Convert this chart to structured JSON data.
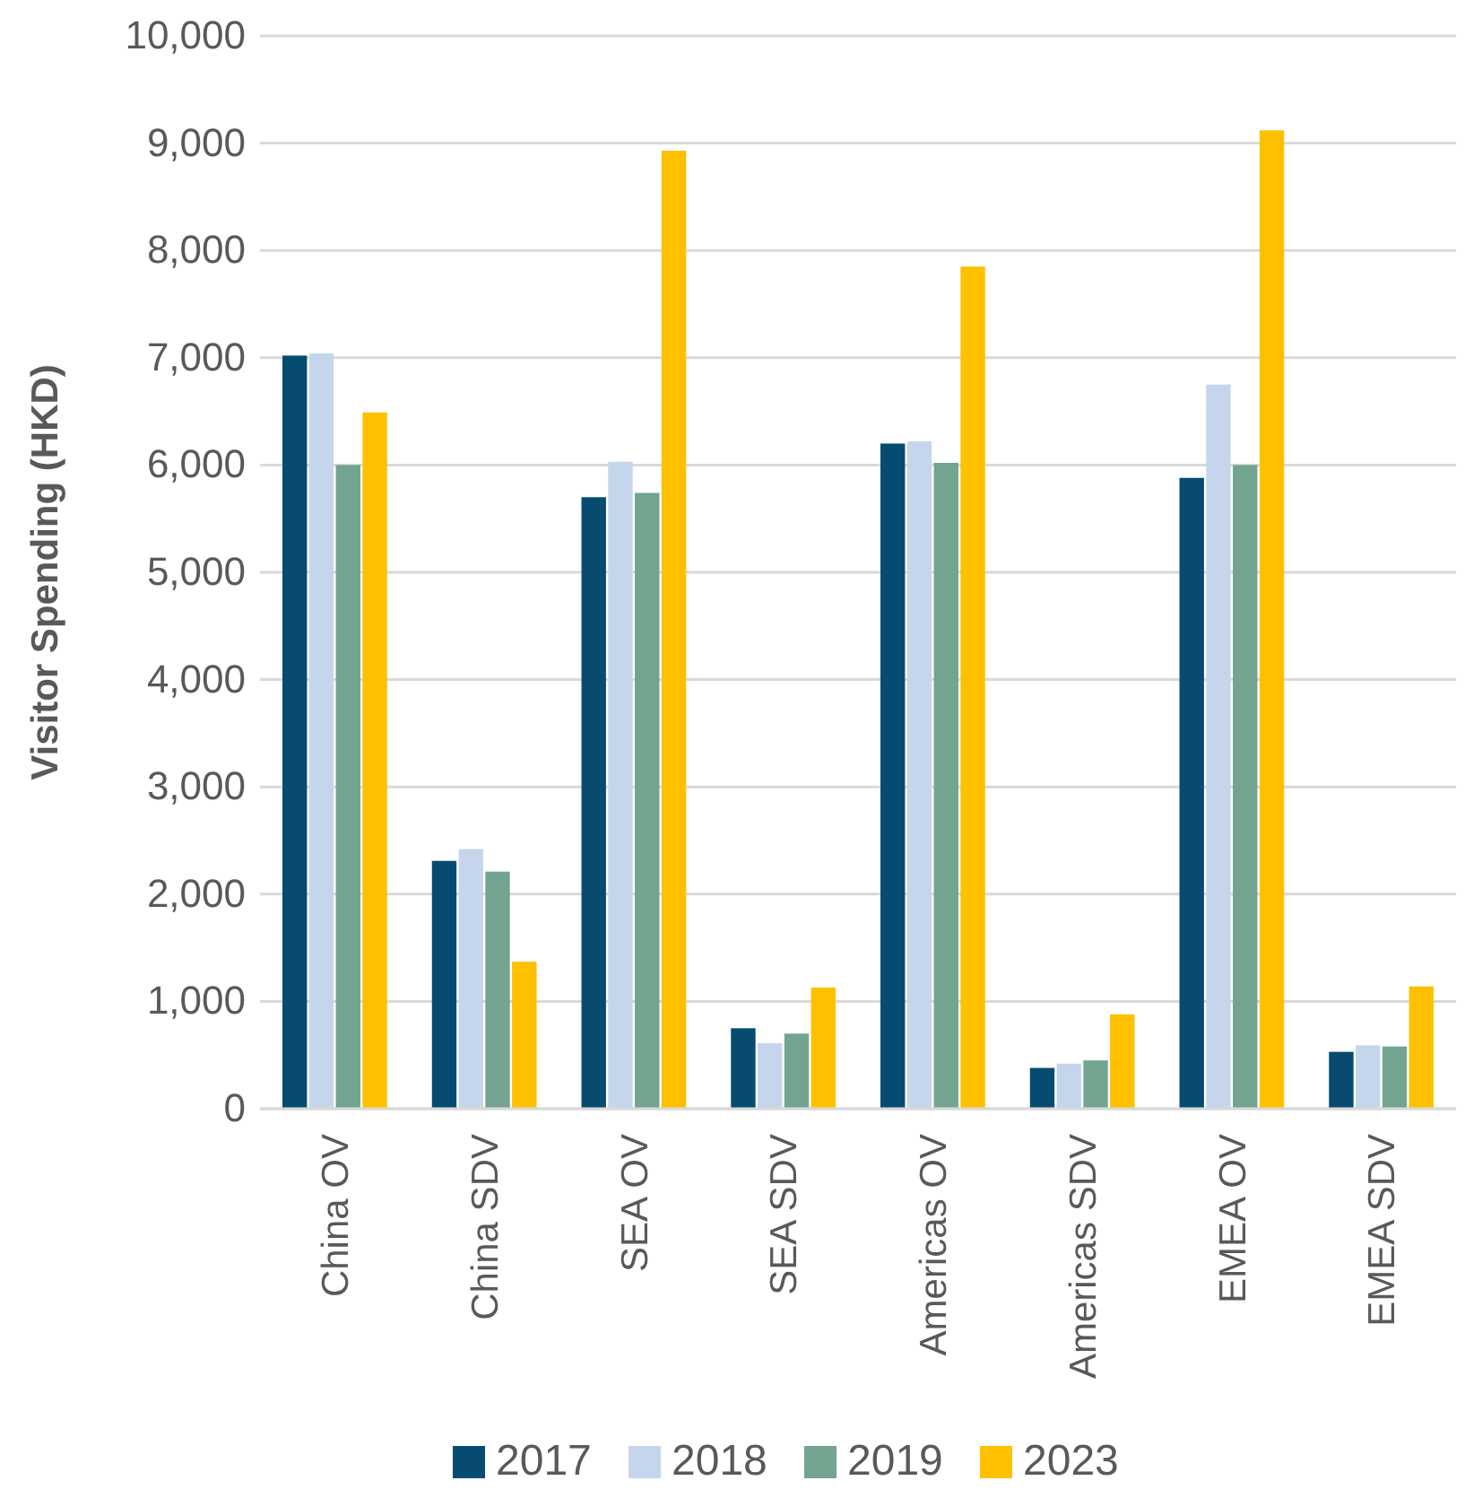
{
  "chart_data": {
    "type": "bar",
    "ylabel": "Visitor Spending (HKD)",
    "categories": [
      "China OV",
      "China SDV",
      "SEA OV",
      "SEA SDV",
      "Americas OV",
      "Americas SDV",
      "EMEA OV",
      "EMEA SDV"
    ],
    "series": [
      {
        "name": "2017",
        "color": "#074c70",
        "values": [
          7020,
          2310,
          5700,
          750,
          6200,
          380,
          5880,
          530
        ]
      },
      {
        "name": "2018",
        "color": "#c5d6ec",
        "values": [
          7040,
          2420,
          6030,
          610,
          6220,
          420,
          6750,
          590
        ]
      },
      {
        "name": "2019",
        "color": "#72a490",
        "values": [
          6000,
          2210,
          5740,
          700,
          6020,
          450,
          6000,
          580
        ]
      },
      {
        "name": "2023",
        "color": "#ffc000",
        "values": [
          6490,
          1370,
          8930,
          1130,
          7850,
          880,
          9120,
          1140
        ]
      }
    ],
    "ylim": [
      0,
      10000
    ],
    "yticks": [
      {
        "value": 0,
        "label": "0"
      },
      {
        "value": 1000,
        "label": "1,000"
      },
      {
        "value": 2000,
        "label": "2,000"
      },
      {
        "value": 3000,
        "label": "3,000"
      },
      {
        "value": 4000,
        "label": "4,000"
      },
      {
        "value": 5000,
        "label": "5,000"
      },
      {
        "value": 6000,
        "label": "6,000"
      },
      {
        "value": 7000,
        "label": "7,000"
      },
      {
        "value": 8000,
        "label": "8,000"
      },
      {
        "value": 9000,
        "label": "9,000"
      },
      {
        "value": 10000,
        "label": "10,000"
      }
    ],
    "grid": "y",
    "legend": "bottom"
  }
}
